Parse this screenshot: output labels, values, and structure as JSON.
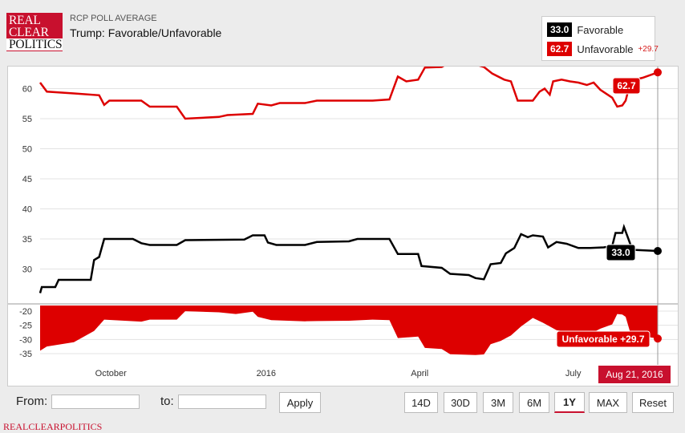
{
  "header": {
    "logo_lines": [
      "REAL",
      "CLEAR",
      "POLITICS"
    ],
    "subtitle": "RCP POLL AVERAGE",
    "title": "Trump: Favorable/Unfavorable"
  },
  "legend": {
    "favorable": {
      "value": "33.0",
      "label": "Favorable",
      "color": "#000000"
    },
    "unfavorable": {
      "value": "62.7",
      "label": "Unfavorable",
      "spread": "+29.7",
      "color": "#dd0000"
    }
  },
  "chart_data": {
    "type": "line",
    "x_ticks": [
      "October",
      "2016",
      "April",
      "July"
    ],
    "y_ticks_main": [
      30,
      35,
      40,
      45,
      50,
      55,
      60
    ],
    "y_ticks_spread": [
      -20,
      -25,
      -30,
      -35
    ],
    "ylim_main": [
      25,
      63
    ],
    "ylim_spread": [
      -37,
      -18
    ],
    "x_range": [
      "2015-08-21",
      "2016-08-21"
    ],
    "series": [
      {
        "name": "Unfavorable",
        "color": "#dd0000",
        "points": [
          [
            "2015-08-21",
            61.0
          ],
          [
            "2015-08-25",
            59.5
          ],
          [
            "2015-09-10",
            59.2
          ],
          [
            "2015-09-25",
            58.9
          ],
          [
            "2015-09-28",
            57.3
          ],
          [
            "2015-10-01",
            58.0
          ],
          [
            "2015-10-20",
            58.0
          ],
          [
            "2015-10-25",
            57.0
          ],
          [
            "2015-11-10",
            57.0
          ],
          [
            "2015-11-15",
            55.0
          ],
          [
            "2015-12-05",
            55.3
          ],
          [
            "2015-12-10",
            55.6
          ],
          [
            "2015-12-25",
            55.8
          ],
          [
            "2015-12-28",
            57.5
          ],
          [
            "2016-01-05",
            57.2
          ],
          [
            "2016-01-10",
            57.6
          ],
          [
            "2016-01-25",
            57.6
          ],
          [
            "2016-02-01",
            58.0
          ],
          [
            "2016-02-20",
            58.0
          ],
          [
            "2016-03-05",
            58.0
          ],
          [
            "2016-03-15",
            58.2
          ],
          [
            "2016-03-20",
            62.0
          ],
          [
            "2016-03-25",
            61.2
          ],
          [
            "2016-04-01",
            61.5
          ],
          [
            "2016-04-05",
            63.5
          ],
          [
            "2016-04-15",
            63.6
          ],
          [
            "2016-04-20",
            64.4
          ],
          [
            "2016-04-28",
            64.5
          ],
          [
            "2016-05-05",
            64.0
          ],
          [
            "2016-05-10",
            63.6
          ],
          [
            "2016-05-15",
            62.5
          ],
          [
            "2016-05-22",
            61.5
          ],
          [
            "2016-05-26",
            61.2
          ],
          [
            "2016-05-30",
            58.0
          ],
          [
            "2016-06-08",
            58.0
          ],
          [
            "2016-06-12",
            59.5
          ],
          [
            "2016-06-15",
            60.0
          ],
          [
            "2016-06-18",
            59.0
          ],
          [
            "2016-06-20",
            61.2
          ],
          [
            "2016-06-25",
            61.5
          ],
          [
            "2016-06-30",
            61.2
          ],
          [
            "2016-07-05",
            61.0
          ],
          [
            "2016-07-10",
            60.6
          ],
          [
            "2016-07-14",
            61.0
          ],
          [
            "2016-07-18",
            59.8
          ],
          [
            "2016-07-25",
            58.5
          ],
          [
            "2016-07-28",
            57.0
          ],
          [
            "2016-07-31",
            57.2
          ],
          [
            "2016-08-02",
            58.0
          ],
          [
            "2016-08-05",
            61.3
          ],
          [
            "2016-08-12",
            61.8
          ],
          [
            "2016-08-21",
            62.7
          ]
        ]
      },
      {
        "name": "Favorable",
        "color": "#000000",
        "points": [
          [
            "2015-08-21",
            26.0
          ],
          [
            "2015-08-22",
            27.0
          ],
          [
            "2015-08-30",
            27.0
          ],
          [
            "2015-09-01",
            28.2
          ],
          [
            "2015-09-20",
            28.2
          ],
          [
            "2015-09-22",
            31.5
          ],
          [
            "2015-09-25",
            32.0
          ],
          [
            "2015-09-28",
            35.0
          ],
          [
            "2015-10-15",
            35.0
          ],
          [
            "2015-10-20",
            34.3
          ],
          [
            "2015-10-25",
            34.0
          ],
          [
            "2015-11-10",
            34.0
          ],
          [
            "2015-11-15",
            34.8
          ],
          [
            "2015-12-20",
            34.9
          ],
          [
            "2015-12-25",
            35.6
          ],
          [
            "2016-01-01",
            35.6
          ],
          [
            "2016-01-03",
            34.4
          ],
          [
            "2016-01-08",
            34.0
          ],
          [
            "2016-01-25",
            34.0
          ],
          [
            "2016-02-01",
            34.5
          ],
          [
            "2016-02-20",
            34.6
          ],
          [
            "2016-02-25",
            35.0
          ],
          [
            "2016-03-15",
            35.0
          ],
          [
            "2016-03-20",
            32.5
          ],
          [
            "2016-04-01",
            32.5
          ],
          [
            "2016-04-03",
            30.5
          ],
          [
            "2016-04-15",
            30.2
          ],
          [
            "2016-04-20",
            29.2
          ],
          [
            "2016-05-01",
            29.0
          ],
          [
            "2016-05-05",
            28.5
          ],
          [
            "2016-05-10",
            28.3
          ],
          [
            "2016-05-14",
            30.8
          ],
          [
            "2016-05-20",
            31.0
          ],
          [
            "2016-05-23",
            32.6
          ],
          [
            "2016-05-28",
            33.5
          ],
          [
            "2016-06-01",
            35.8
          ],
          [
            "2016-06-05",
            35.3
          ],
          [
            "2016-06-08",
            35.6
          ],
          [
            "2016-06-14",
            35.4
          ],
          [
            "2016-06-17",
            33.6
          ],
          [
            "2016-06-22",
            34.5
          ],
          [
            "2016-06-28",
            34.2
          ],
          [
            "2016-07-05",
            33.5
          ],
          [
            "2016-07-12",
            33.5
          ],
          [
            "2016-07-20",
            33.6
          ],
          [
            "2016-07-25",
            33.8
          ],
          [
            "2016-07-27",
            36.0
          ],
          [
            "2016-07-31",
            36.0
          ],
          [
            "2016-08-01",
            37.0
          ],
          [
            "2016-08-03",
            35.5
          ],
          [
            "2016-08-06",
            33.2
          ],
          [
            "2016-08-21",
            33.0
          ]
        ]
      },
      {
        "name": "Unfavorable",
        "color": "#dd0000",
        "points": [
          [
            "2015-08-21",
            -34.0
          ],
          [
            "2015-08-25",
            -32.5
          ],
          [
            "2015-09-10",
            -31.0
          ],
          [
            "2015-09-22",
            -27.0
          ],
          [
            "2015-09-28",
            -23.0
          ],
          [
            "2015-10-20",
            -23.7
          ],
          [
            "2015-10-25",
            -23.0
          ],
          [
            "2015-11-10",
            -23.0
          ],
          [
            "2015-11-15",
            -20.0
          ],
          [
            "2015-12-05",
            -20.4
          ],
          [
            "2015-12-15",
            -21.0
          ],
          [
            "2015-12-25",
            -20.2
          ],
          [
            "2015-12-28",
            -22.0
          ],
          [
            "2016-01-05",
            -23.2
          ],
          [
            "2016-01-25",
            -23.6
          ],
          [
            "2016-02-01",
            -23.5
          ],
          [
            "2016-02-20",
            -23.4
          ],
          [
            "2016-03-05",
            -23.0
          ],
          [
            "2016-03-15",
            -23.2
          ],
          [
            "2016-03-20",
            -29.5
          ],
          [
            "2016-04-01",
            -29.0
          ],
          [
            "2016-04-05",
            -33.0
          ],
          [
            "2016-04-15",
            -33.4
          ],
          [
            "2016-04-20",
            -35.2
          ],
          [
            "2016-05-05",
            -35.5
          ],
          [
            "2016-05-10",
            -35.3
          ],
          [
            "2016-05-14",
            -31.7
          ],
          [
            "2016-05-20",
            -30.5
          ],
          [
            "2016-05-26",
            -28.6
          ],
          [
            "2016-06-01",
            -25.4
          ],
          [
            "2016-06-08",
            -22.4
          ],
          [
            "2016-06-14",
            -24.1
          ],
          [
            "2016-06-18",
            -25.4
          ],
          [
            "2016-06-22",
            -26.7
          ],
          [
            "2016-06-28",
            -27.3
          ],
          [
            "2016-07-05",
            -27.5
          ],
          [
            "2016-07-14",
            -27.4
          ],
          [
            "2016-07-18",
            -26.2
          ],
          [
            "2016-07-25",
            -24.7
          ],
          [
            "2016-07-28",
            -21.0
          ],
          [
            "2016-07-31",
            -21.2
          ],
          [
            "2016-08-02",
            -22.0
          ],
          [
            "2016-08-05",
            -28.1
          ],
          [
            "2016-08-12",
            -28.8
          ],
          [
            "2016-08-21",
            -29.7
          ]
        ]
      }
    ],
    "callouts": {
      "unfavorable": "62.7",
      "favorable": "33.0",
      "spread": "Unfavorable +29.7",
      "date": "Aug 21, 2016"
    }
  },
  "controls": {
    "from_label": "From:",
    "to_label": "to:",
    "from_value": "",
    "to_value": "",
    "apply_label": "Apply",
    "ranges": [
      "14D",
      "30D",
      "3M",
      "6M",
      "1Y",
      "MAX"
    ],
    "active_range": "1Y",
    "reset_label": "Reset"
  },
  "footer": {
    "brand": "REALCLEARPOLITICS"
  }
}
